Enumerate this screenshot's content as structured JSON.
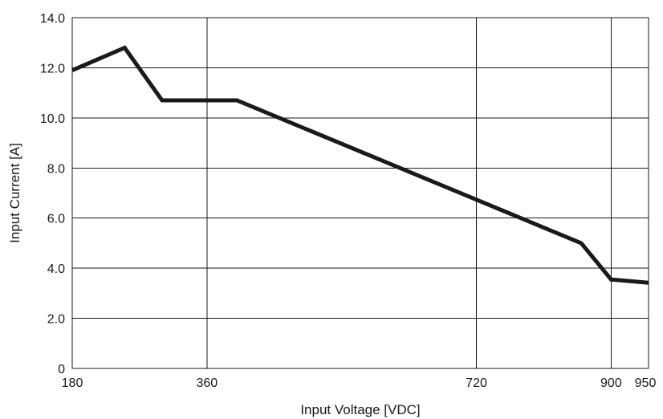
{
  "chart_data": {
    "type": "line",
    "title": "",
    "xlabel": "Input Voltage [VDC]",
    "ylabel": "Input Current [A]",
    "xlim": [
      180,
      950
    ],
    "ylim": [
      0,
      14
    ],
    "x_ticks": [
      180,
      360,
      720,
      900,
      950
    ],
    "x_tick_labels": [
      "180",
      "360",
      "720",
      "900",
      "950"
    ],
    "y_ticks": [
      0,
      2,
      4,
      6,
      8,
      10,
      12,
      14
    ],
    "y_tick_labels": [
      "0",
      "2.0",
      "4.0",
      "6.0",
      "8.0",
      "10.0",
      "12.0",
      "14.0"
    ],
    "grid": true,
    "legend": false,
    "series": [
      {
        "x": [
          180,
          250,
          300,
          400,
          860,
          900,
          950
        ],
        "y": [
          11.9,
          12.8,
          10.7,
          10.7,
          5.0,
          3.55,
          3.42
        ],
        "color": "#1a1a1a"
      }
    ]
  }
}
